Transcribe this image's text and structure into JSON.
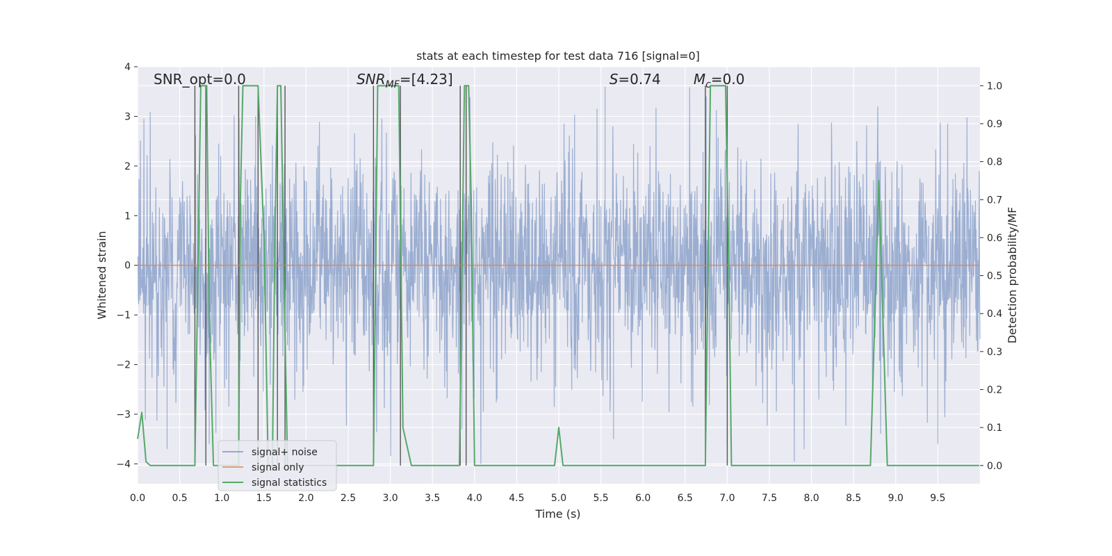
{
  "chart_data": {
    "type": "line",
    "title": "stats at each timestep for test data 716 [signal=0]",
    "xlabel": "Time (s)",
    "ylabel": "Whitened strain",
    "y2label": "Detection probability/MF",
    "xlim": [
      0.0,
      10.0
    ],
    "ylim": [
      -4.4,
      4.0
    ],
    "y2lim": [
      -0.048,
      1.05
    ],
    "x_ticks": [
      0.0,
      0.5,
      1.0,
      1.5,
      2.0,
      2.5,
      3.0,
      3.5,
      4.0,
      4.5,
      5.0,
      5.5,
      6.0,
      6.5,
      7.0,
      7.5,
      8.0,
      8.5,
      9.0,
      9.5
    ],
    "x_tick_labels": [
      "0.0",
      "0.5",
      "1.0",
      "1.5",
      "2.0",
      "2.5",
      "3.0",
      "3.5",
      "4.0",
      "4.5",
      "5.0",
      "5.5",
      "6.0",
      "6.5",
      "7.0",
      "7.5",
      "8.0",
      "8.5",
      "9.0",
      "9.5"
    ],
    "y_ticks": [
      4,
      3,
      2,
      1,
      0,
      -1,
      -2,
      -3,
      -4
    ],
    "y_tick_labels": [
      "4",
      "3",
      "2",
      "1",
      "0",
      "−1",
      "−2",
      "−3",
      "−4"
    ],
    "y2_ticks": [
      1.0,
      0.9,
      0.8,
      0.7,
      0.6,
      0.5,
      0.4,
      0.3,
      0.2,
      0.1,
      0.0
    ],
    "y2_tick_labels": [
      "1.0",
      "0.9",
      "0.8",
      "0.7",
      "0.6",
      "0.5",
      "0.4",
      "0.3",
      "0.2",
      "0.1",
      "0.0"
    ],
    "grid": true,
    "legend_position": "lower-left",
    "annotations": [
      {
        "text": "SNR_opt=0.0",
        "x": 0.19
      },
      {
        "text": "SNR_MF=[4.23]",
        "x": 2.6
      },
      {
        "text": "S=0.74",
        "x": 5.6
      },
      {
        "text": "M_c=0.0",
        "x": 6.6
      }
    ],
    "series": [
      {
        "name": "signal+ noise",
        "color": "#4c72b0",
        "kind": "noise",
        "approx_range": [
          -4.0,
          3.6
        ],
        "typical_amplitude": 1.6,
        "peak_samples": [
          {
            "x": 0.35,
            "y": -3.7
          },
          {
            "x": 0.85,
            "y": -3.6
          },
          {
            "x": 1.4,
            "y": 3.0
          },
          {
            "x": 3.85,
            "y": -3.3
          },
          {
            "x": 5.55,
            "y": 3.6
          },
          {
            "x": 5.65,
            "y": -3.5
          },
          {
            "x": 6.75,
            "y": 3.4
          },
          {
            "x": 7.0,
            "y": -3.6
          },
          {
            "x": 9.5,
            "y": -3.6
          }
        ]
      },
      {
        "name": "signal only",
        "color": "#dd8452",
        "x": [
          0.0,
          10.0
        ],
        "y": [
          0.0,
          0.0
        ]
      },
      {
        "name": "signal statistics",
        "color": "#55a868",
        "axis": "right",
        "x": [
          0.0,
          0.05,
          0.1,
          0.15,
          0.2,
          0.68,
          0.75,
          0.8,
          0.82,
          0.85,
          0.9,
          0.92,
          0.95,
          1.0,
          1.05,
          1.1,
          1.15,
          1.2,
          1.22,
          1.25,
          1.3,
          1.4,
          1.43,
          1.5,
          1.55,
          1.6,
          1.63,
          1.66,
          1.7,
          1.75,
          1.78,
          1.82,
          2.8,
          2.85,
          2.9,
          3.1,
          3.15,
          3.25,
          3.82,
          3.88,
          3.9,
          3.93,
          3.96,
          4.0,
          4.05,
          4.95,
          5.0,
          5.05,
          6.74,
          6.8,
          6.86,
          6.98,
          7.02,
          7.05,
          8.7,
          8.8,
          8.9,
          9.99
        ],
        "y": [
          0.07,
          0.14,
          0.01,
          0.0,
          0.0,
          0.0,
          1.0,
          1.0,
          1.0,
          0.4,
          0.0,
          0.0,
          0.0,
          0.0,
          0.0,
          0.0,
          0.0,
          0.0,
          0.7,
          1.0,
          1.0,
          1.0,
          1.0,
          0.6,
          0.0,
          0.0,
          0.6,
          1.0,
          1.0,
          0.35,
          0.0,
          0.0,
          0.0,
          1.0,
          1.0,
          1.0,
          0.1,
          0.0,
          0.0,
          1.0,
          1.0,
          1.0,
          0.7,
          0.0,
          0.0,
          0.0,
          0.1,
          0.0,
          0.0,
          1.0,
          1.0,
          1.0,
          0.5,
          0.0,
          0.0,
          0.75,
          0.0,
          0.0
        ]
      }
    ],
    "detection_markers": {
      "color": "#555555",
      "x": [
        0.68,
        0.81,
        1.2,
        1.43,
        1.66,
        1.75,
        2.8,
        3.12,
        3.83,
        3.9,
        6.74,
        7.0
      ]
    }
  }
}
